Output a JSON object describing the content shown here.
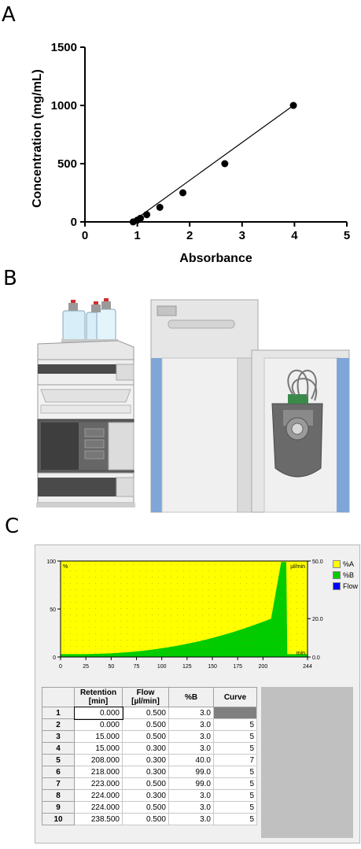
{
  "panels": {
    "a_label": "A",
    "b_label": "B",
    "c_label": "C"
  },
  "chart_data": [
    {
      "type": "scatter",
      "title": "",
      "xlabel": "Absorbance",
      "ylabel": "Concentration (mg/mL)",
      "xlim": [
        0,
        5
      ],
      "ylim": [
        0,
        1500
      ],
      "x_ticks": [
        "0",
        "1",
        "2",
        "3",
        "4",
        "5"
      ],
      "y_ticks": [
        "0",
        "500",
        "1000",
        "1500"
      ],
      "points": [
        {
          "x": 0.92,
          "y": 0
        },
        {
          "x": 1.0,
          "y": 15
        },
        {
          "x": 1.06,
          "y": 31
        },
        {
          "x": 1.18,
          "y": 62
        },
        {
          "x": 1.43,
          "y": 125
        },
        {
          "x": 1.87,
          "y": 250
        },
        {
          "x": 2.67,
          "y": 500
        },
        {
          "x": 3.98,
          "y": 1000
        }
      ],
      "fit_line": {
        "x_start": 0.9,
        "y_start": 0,
        "x_end": 3.98,
        "y_end": 1000
      },
      "grid": false
    },
    {
      "type": "area",
      "title": "",
      "xlabel": "",
      "ylabel": "",
      "xlim": [
        0,
        244
      ],
      "ylim": [
        0,
        100
      ],
      "x_ticks": [
        "0",
        "25",
        "50",
        "75",
        "100",
        "125",
        "150",
        "175",
        "200",
        "244"
      ],
      "y_ticks_left": [
        "0",
        "50",
        "100"
      ],
      "y_ticks_right": [
        "0.0",
        "20.0",
        "50.0"
      ],
      "corner_labels": {
        "left_unit": "%",
        "right_unit": "µl/min",
        "x_unit": "min"
      },
      "series": [
        {
          "name": "%A",
          "color": "#ffff00"
        },
        {
          "name": "%B",
          "color": "#00cc00"
        },
        {
          "name": "Flow",
          "color": "#0000ff"
        }
      ],
      "percent_b": {
        "x": [
          0,
          15,
          15,
          208,
          218,
          223,
          224,
          224,
          238.5,
          244
        ],
        "y": [
          3,
          3,
          3,
          40,
          99,
          99,
          3,
          3,
          3,
          3
        ]
      },
      "legend_position": "right"
    }
  ],
  "table": {
    "headers": [
      "",
      "Retention\n[min]",
      "Flow\n[µl/min]",
      "%B",
      "Curve"
    ],
    "header_line1": [
      "",
      "Retention",
      "Flow",
      "%B",
      "Curve"
    ],
    "header_line2": [
      "",
      "[min]",
      "[µl/min]",
      "",
      ""
    ],
    "rows": [
      [
        "1",
        "0.000",
        "0.500",
        "3.0",
        ""
      ],
      [
        "2",
        "0.000",
        "0.500",
        "3.0",
        "5"
      ],
      [
        "3",
        "15.000",
        "0.500",
        "3.0",
        "5"
      ],
      [
        "4",
        "15.000",
        "0.300",
        "3.0",
        "5"
      ],
      [
        "5",
        "208.000",
        "0.300",
        "40.0",
        "7"
      ],
      [
        "6",
        "218.000",
        "0.300",
        "99.0",
        "5"
      ],
      [
        "7",
        "223.000",
        "0.500",
        "99.0",
        "5"
      ],
      [
        "8",
        "224.000",
        "0.300",
        "3.0",
        "5"
      ],
      [
        "9",
        "224.000",
        "0.500",
        "3.0",
        "5"
      ],
      [
        "10",
        "238.500",
        "0.500",
        "3.0",
        "5"
      ]
    ]
  },
  "colors": {
    "yellow": "#ffff00",
    "green": "#00cc00",
    "blue": "#0000ff",
    "instrument_gray": "#e6e6e6",
    "instrument_blue": "#7fa6d6",
    "dark_module": "#4a4a4a"
  }
}
